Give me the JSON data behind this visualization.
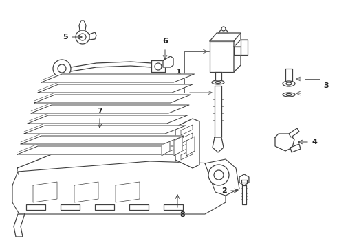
{
  "bg_color": "#ffffff",
  "line_color": "#404040",
  "label_color": "#222222",
  "figsize": [
    4.9,
    3.6
  ],
  "dpi": 100
}
